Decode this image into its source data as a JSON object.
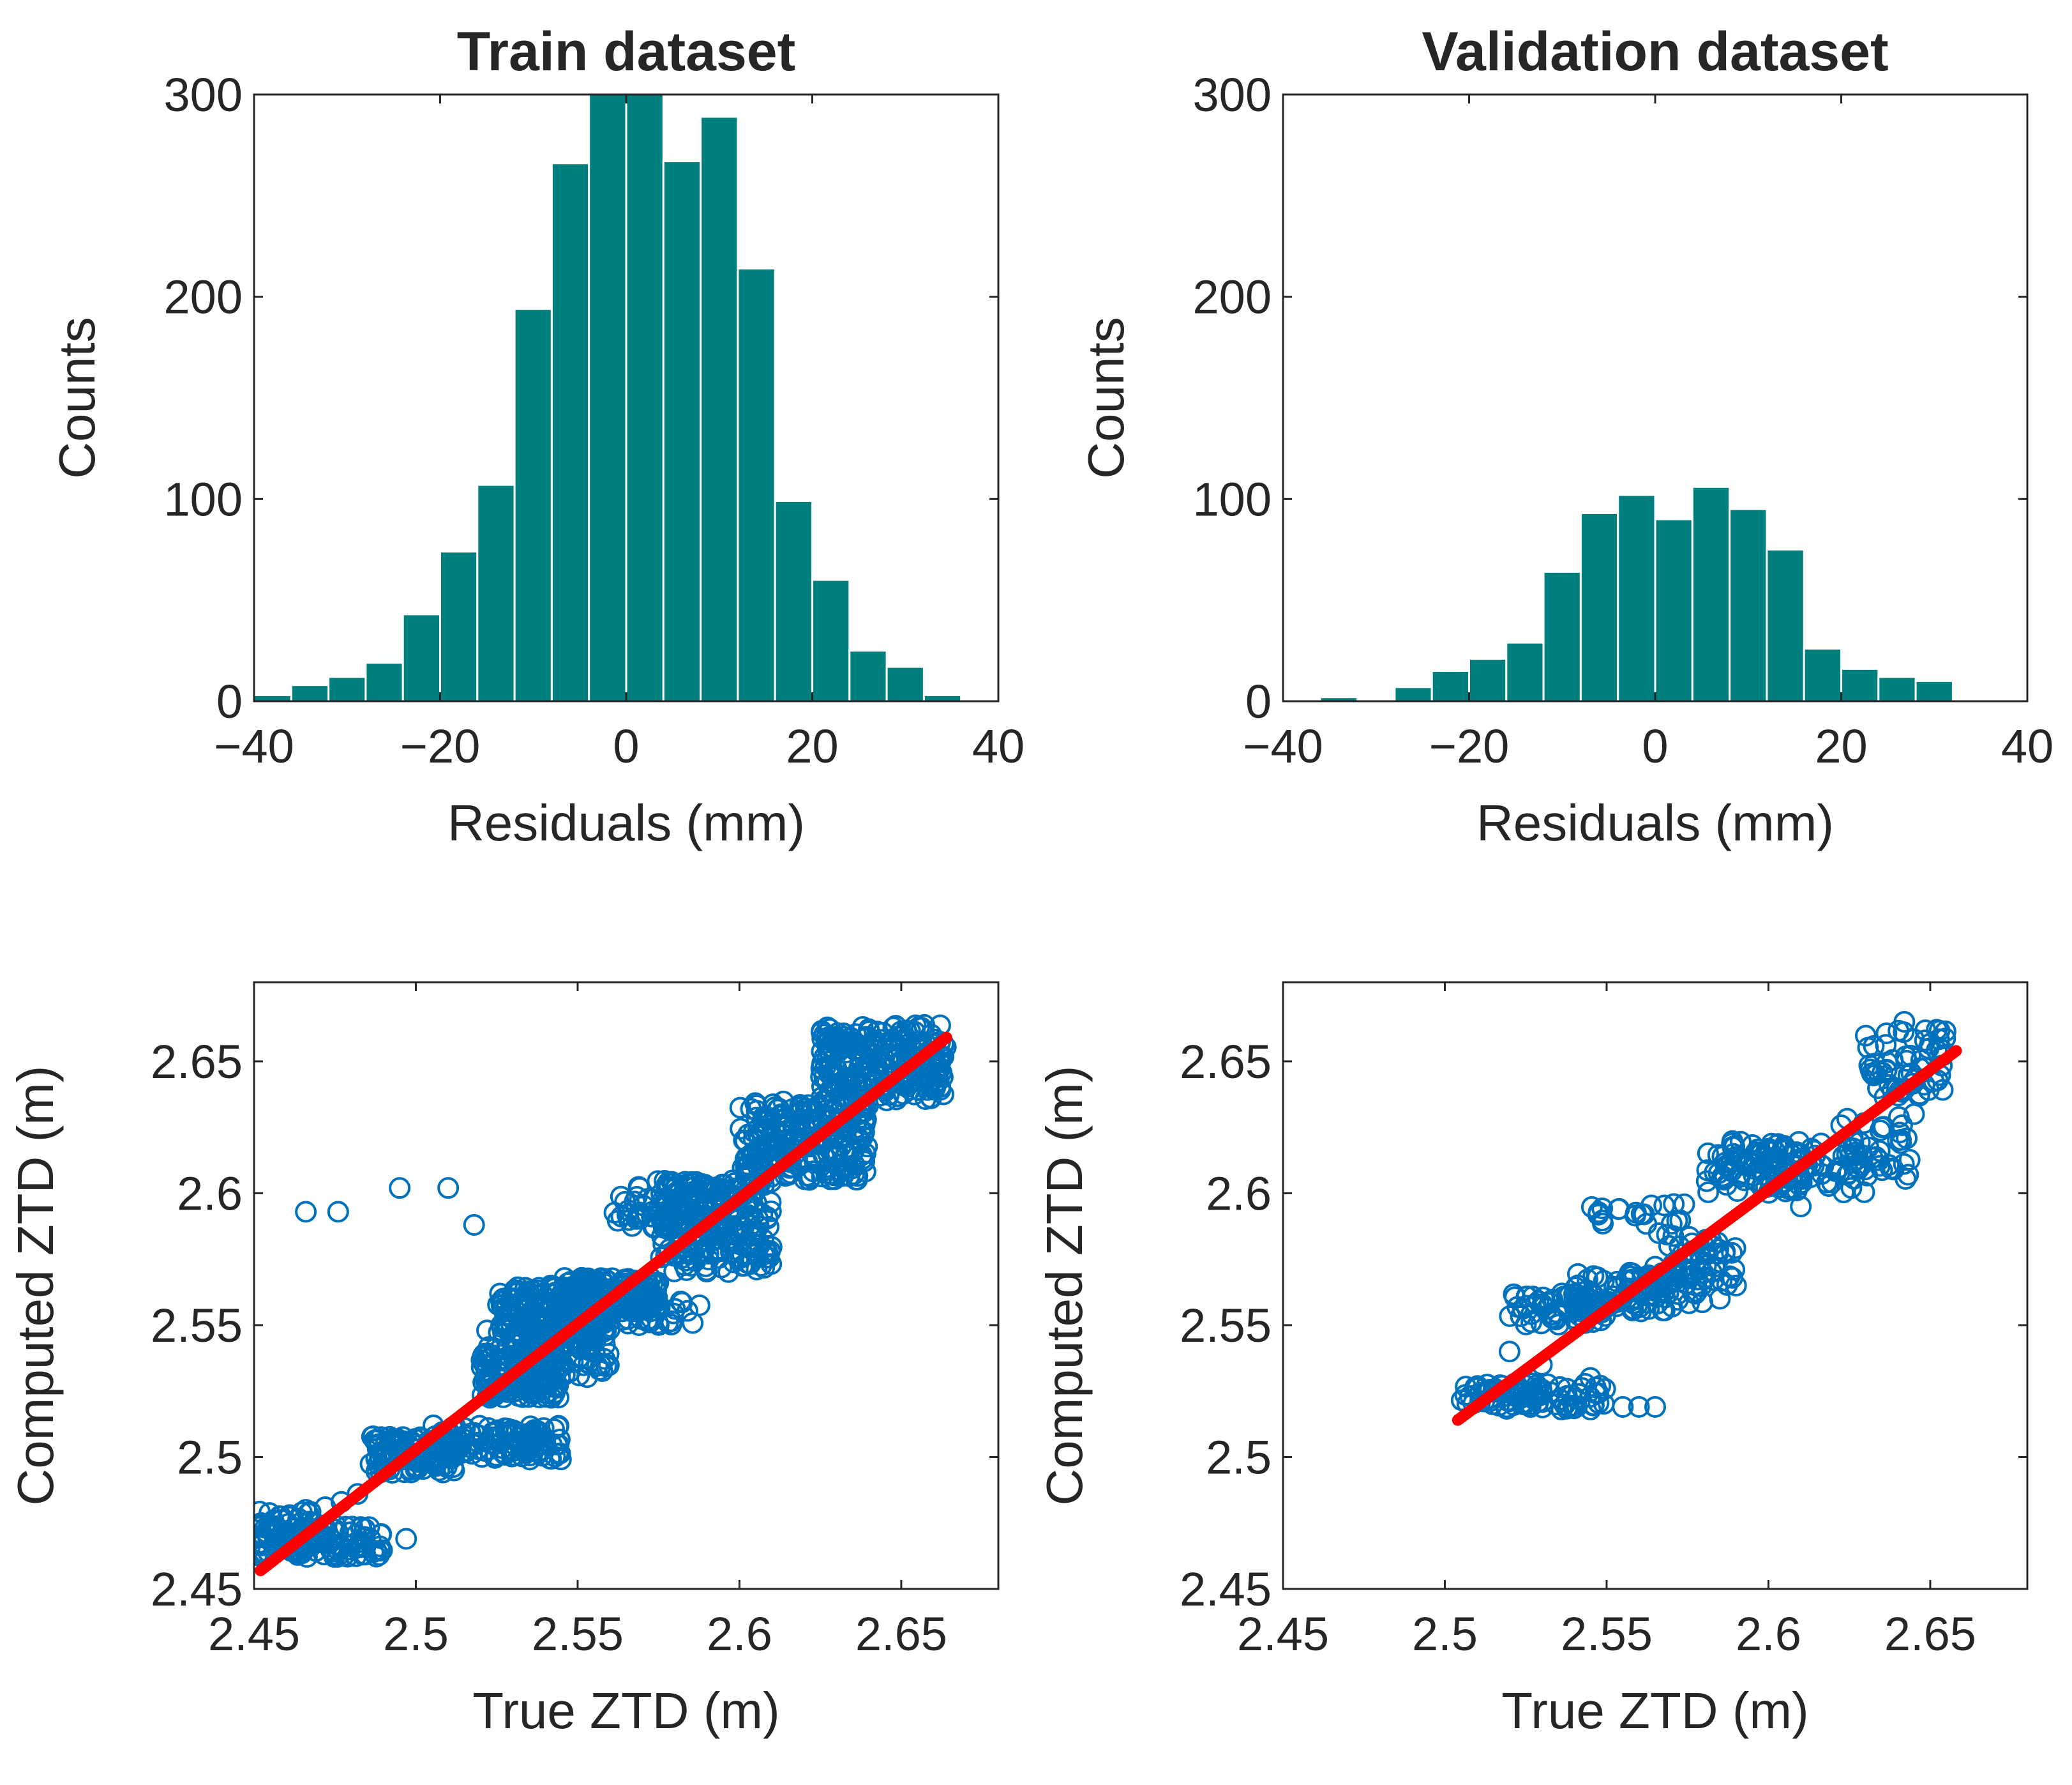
{
  "figure": {
    "background": "#ffffff",
    "axis_color": "#262626"
  },
  "chart_data": [
    {
      "id": "hist-train",
      "type": "bar",
      "title": "Train dataset",
      "xlabel": "Residuals (mm)",
      "ylabel": "Counts",
      "xlim": [
        -40,
        40
      ],
      "ylim": [
        0,
        300
      ],
      "xticks": [
        -40,
        -20,
        0,
        20,
        40
      ],
      "xtick_labels": [
        "−40",
        "−20",
        "0",
        "20",
        "40"
      ],
      "yticks": [
        0,
        100,
        200,
        300
      ],
      "ytick_labels": [
        "0",
        "100",
        "200",
        "300"
      ],
      "bin_edges": [
        -40,
        -36,
        -32,
        -28,
        -24,
        -20,
        -16,
        -12,
        -8,
        -4,
        0,
        4,
        8,
        12,
        16,
        20,
        24,
        28,
        32,
        36,
        40
      ],
      "values": [
        3,
        8,
        12,
        19,
        43,
        74,
        107,
        194,
        266,
        305,
        302,
        267,
        289,
        214,
        99,
        60,
        25,
        17,
        3,
        0
      ],
      "bar_color": "#007f7f",
      "grid": false
    },
    {
      "id": "hist-validation",
      "type": "bar",
      "title": "Validation dataset",
      "xlabel": "Residuals (mm)",
      "ylabel": "Counts",
      "xlim": [
        -40,
        40
      ],
      "ylim": [
        0,
        300
      ],
      "xticks": [
        -40,
        -20,
        0,
        20,
        40
      ],
      "xtick_labels": [
        "−40",
        "−20",
        "0",
        "20",
        "40"
      ],
      "yticks": [
        0,
        100,
        200,
        300
      ],
      "ytick_labels": [
        "0",
        "100",
        "200",
        "300"
      ],
      "bin_edges": [
        -36,
        -32,
        -28,
        -24,
        -20,
        -16,
        -12,
        -8,
        -4,
        0,
        4,
        8,
        12,
        16,
        20,
        24,
        28,
        32,
        36
      ],
      "values": [
        2,
        0,
        7,
        15,
        21,
        29,
        64,
        93,
        102,
        90,
        106,
        95,
        75,
        26,
        16,
        12,
        10,
        0
      ],
      "bar_color": "#007f7f",
      "grid": false
    },
    {
      "id": "scatter-train",
      "type": "scatter",
      "title": "",
      "xlabel": "True ZTD (m)",
      "ylabel": "Computed ZTD (m)",
      "xlim": [
        2.45,
        2.68
      ],
      "ylim": [
        2.45,
        2.68
      ],
      "xticks": [
        2.45,
        2.5,
        2.55,
        2.6,
        2.65
      ],
      "xtick_labels": [
        "2.45",
        "2.5",
        "2.55",
        "2.6",
        "2.65"
      ],
      "yticks": [
        2.45,
        2.5,
        2.55,
        2.6,
        2.65
      ],
      "ytick_labels": [
        "2.45",
        "2.5",
        "2.55",
        "2.6",
        "2.65"
      ],
      "marker_color": "#0072bd",
      "fit_color": "#ff0000",
      "fit_line": {
        "x": [
          2.452,
          2.664
        ],
        "y": [
          2.457,
          2.659
        ]
      },
      "point_groups": [
        {
          "x": [
            2.451,
            2.49
          ],
          "y": [
            2.462,
            2.474
          ],
          "count": 120
        },
        {
          "x": [
            2.451,
            2.47
          ],
          "y": [
            2.465,
            2.48
          ],
          "count": 40
        },
        {
          "x": [
            2.486,
            2.512
          ],
          "y": [
            2.494,
            2.508
          ],
          "count": 120
        },
        {
          "x": [
            2.505,
            2.545
          ],
          "y": [
            2.499,
            2.512
          ],
          "count": 120
        },
        {
          "x": [
            2.52,
            2.545
          ],
          "y": [
            2.522,
            2.542
          ],
          "count": 160
        },
        {
          "x": [
            2.525,
            2.56
          ],
          "y": [
            2.545,
            2.565
          ],
          "count": 220
        },
        {
          "x": [
            2.545,
            2.575
          ],
          "y": [
            2.555,
            2.568
          ],
          "count": 180
        },
        {
          "x": [
            2.575,
            2.61
          ],
          "y": [
            2.57,
            2.605
          ],
          "count": 200
        },
        {
          "x": [
            2.6,
            2.64
          ],
          "y": [
            2.605,
            2.635
          ],
          "count": 240
        },
        {
          "x": [
            2.625,
            2.664
          ],
          "y": [
            2.635,
            2.664
          ],
          "count": 260
        },
        {
          "x": [
            2.56,
            2.6
          ],
          "y": [
            2.587,
            2.606
          ],
          "count": 80
        },
        {
          "x": [
            2.56,
            2.59
          ],
          "y": [
            2.55,
            2.56
          ],
          "count": 30
        },
        {
          "x": [
            2.53,
            2.56
          ],
          "y": [
            2.53,
            2.55
          ],
          "count": 80
        }
      ],
      "points": [
        [
          2.497,
          2.469
        ],
        [
          2.537,
          2.56
        ],
        [
          2.545,
          2.56
        ],
        [
          2.55,
          2.56
        ],
        [
          2.595,
          2.587
        ],
        [
          2.466,
          2.593
        ],
        [
          2.476,
          2.593
        ],
        [
          2.495,
          2.602
        ],
        [
          2.51,
          2.602
        ],
        [
          2.518,
          2.588
        ],
        [
          2.522,
          2.548
        ],
        [
          2.54,
          2.538
        ],
        [
          2.545,
          2.545
        ],
        [
          2.5,
          2.499
        ],
        [
          2.51,
          2.507
        ],
        [
          2.515,
          2.508
        ],
        [
          2.53,
          2.505
        ],
        [
          2.456,
          2.476
        ],
        [
          2.461,
          2.478
        ],
        [
          2.466,
          2.48
        ],
        [
          2.472,
          2.481
        ],
        [
          2.477,
          2.483
        ],
        [
          2.482,
          2.486
        ]
      ],
      "grid": false
    },
    {
      "id": "scatter-validation",
      "type": "scatter",
      "title": "",
      "xlabel": "True ZTD (m)",
      "ylabel": "Computed ZTD (m)",
      "xlim": [
        2.45,
        2.68
      ],
      "ylim": [
        2.45,
        2.68
      ],
      "xticks": [
        2.45,
        2.5,
        2.55,
        2.6,
        2.65
      ],
      "xtick_labels": [
        "2.45",
        "2.5",
        "2.55",
        "2.6",
        "2.65"
      ],
      "yticks": [
        2.45,
        2.5,
        2.55,
        2.6,
        2.65
      ],
      "ytick_labels": [
        "2.45",
        "2.5",
        "2.55",
        "2.6",
        "2.65"
      ],
      "marker_color": "#0072bd",
      "fit_color": "#ff0000",
      "fit_line": {
        "x": [
          2.504,
          2.658
        ],
        "y": [
          2.514,
          2.654
        ]
      },
      "point_groups": [
        {
          "x": [
            2.505,
            2.53
          ],
          "y": [
            2.52,
            2.528
          ],
          "count": 40
        },
        {
          "x": [
            2.515,
            2.55
          ],
          "y": [
            2.518,
            2.528
          ],
          "count": 60
        },
        {
          "x": [
            2.52,
            2.55
          ],
          "y": [
            2.55,
            2.562
          ],
          "count": 70
        },
        {
          "x": [
            2.54,
            2.58
          ],
          "y": [
            2.555,
            2.57
          ],
          "count": 90
        },
        {
          "x": [
            2.565,
            2.59
          ],
          "y": [
            2.565,
            2.585
          ],
          "count": 50
        },
        {
          "x": [
            2.58,
            2.61
          ],
          "y": [
            2.6,
            2.62
          ],
          "count": 80
        },
        {
          "x": [
            2.6,
            2.63
          ],
          "y": [
            2.6,
            2.62
          ],
          "count": 60
        },
        {
          "x": [
            2.62,
            2.645
          ],
          "y": [
            2.605,
            2.63
          ],
          "count": 40
        },
        {
          "x": [
            2.63,
            2.655
          ],
          "y": [
            2.635,
            2.662
          ],
          "count": 60
        },
        {
          "x": [
            2.545,
            2.575
          ],
          "y": [
            2.588,
            2.596
          ],
          "count": 20
        }
      ],
      "points": [
        [
          2.555,
          2.519
        ],
        [
          2.56,
          2.519
        ],
        [
          2.565,
          2.519
        ],
        [
          2.585,
          2.56
        ],
        [
          2.59,
          2.565
        ],
        [
          2.545,
          2.53
        ],
        [
          2.52,
          2.54
        ],
        [
          2.53,
          2.535
        ],
        [
          2.545,
          2.518
        ],
        [
          2.61,
          2.595
        ],
        [
          2.635,
          2.625
        ],
        [
          2.64,
          2.62
        ],
        [
          2.645,
          2.63
        ],
        [
          2.642,
          2.665
        ],
        [
          2.652,
          2.662
        ]
      ],
      "grid": false
    }
  ]
}
